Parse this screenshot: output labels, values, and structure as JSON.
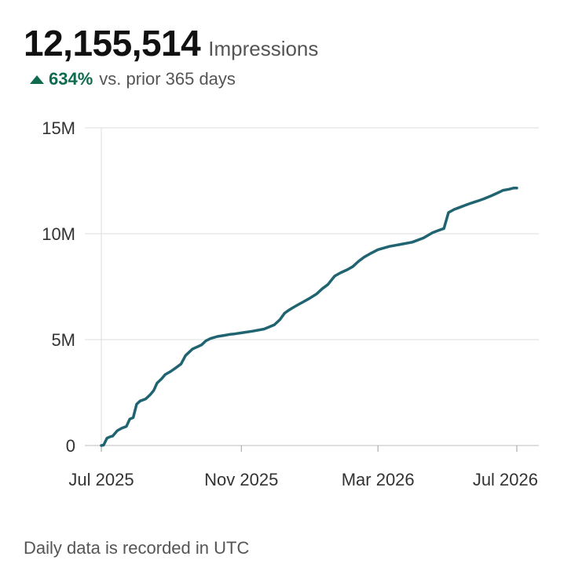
{
  "header": {
    "value": "12,155,514",
    "metric": "Impressions",
    "change_pct": "634%",
    "change_text": "vs. prior 365 days",
    "change_icon": "triangle-up-icon",
    "positive_color": "#0e6b4f"
  },
  "footnote": "Daily data is recorded in UTC",
  "chart_data": {
    "type": "line",
    "title": "",
    "xlabel": "",
    "ylabel": "",
    "line_color": "#1f6470",
    "grid": true,
    "ylim": [
      0,
      15000000
    ],
    "yticks": [
      0,
      5000000,
      10000000,
      15000000
    ],
    "ytick_labels": [
      "0",
      "5M",
      "10M",
      "15M"
    ],
    "xlim": [
      "2025-07-01",
      "2026-07-01"
    ],
    "xticks": [
      "2025-07-01",
      "2025-11-01",
      "2026-03-01",
      "2026-07-01"
    ],
    "xtick_labels": [
      "Jul 2025",
      "Nov 2025",
      "Mar 2026",
      "Jul 2026"
    ],
    "series": [
      {
        "x": [
          "2025-07-01",
          "2025-07-03",
          "2025-07-06",
          "2025-07-09",
          "2025-07-11",
          "2025-07-15",
          "2025-07-19",
          "2025-07-23",
          "2025-07-26",
          "2025-07-29",
          "2025-08-01",
          "2025-08-04",
          "2025-08-09",
          "2025-08-13",
          "2025-08-16",
          "2025-08-19",
          "2025-08-23",
          "2025-08-26",
          "2025-08-31",
          "2025-09-04",
          "2025-09-09",
          "2025-09-13",
          "2025-09-16",
          "2025-09-19",
          "2025-09-23",
          "2025-09-27",
          "2025-10-01",
          "2025-10-05",
          "2025-10-11",
          "2025-10-17",
          "2025-10-22",
          "2025-10-26",
          "2025-11-01",
          "2025-11-11",
          "2025-11-21",
          "2025-11-30",
          "2025-12-05",
          "2025-12-09",
          "2025-12-13",
          "2025-12-16",
          "2025-12-21",
          "2025-12-26",
          "2025-12-31",
          "2026-01-06",
          "2026-01-11",
          "2026-01-16",
          "2026-01-22",
          "2026-01-27",
          "2026-02-02",
          "2026-02-07",
          "2026-02-12",
          "2026-02-17",
          "2026-02-22",
          "2026-03-01",
          "2026-03-11",
          "2026-03-21",
          "2026-03-31",
          "2026-04-10",
          "2026-04-18",
          "2026-04-23",
          "2026-04-28",
          "2026-05-02",
          "2026-05-07",
          "2026-05-12",
          "2026-05-17",
          "2026-05-22",
          "2026-05-28",
          "2026-06-02",
          "2026-06-09",
          "2026-06-15",
          "2026-06-19",
          "2026-06-24",
          "2026-06-28",
          "2026-07-01"
        ],
        "y": [
          0,
          20000,
          350000,
          420000,
          450000,
          700000,
          820000,
          900000,
          1250000,
          1320000,
          1950000,
          2100000,
          2200000,
          2400000,
          2600000,
          2950000,
          3150000,
          3350000,
          3500000,
          3650000,
          3850000,
          4250000,
          4400000,
          4550000,
          4650000,
          4750000,
          4950000,
          5050000,
          5150000,
          5200000,
          5250000,
          5270000,
          5320000,
          5400000,
          5500000,
          5700000,
          5950000,
          6250000,
          6400000,
          6500000,
          6650000,
          6800000,
          6950000,
          7150000,
          7400000,
          7600000,
          8000000,
          8150000,
          8300000,
          8450000,
          8700000,
          8900000,
          9050000,
          9250000,
          9400000,
          9500000,
          9600000,
          9800000,
          10050000,
          10150000,
          10250000,
          11000000,
          11150000,
          11250000,
          11350000,
          11450000,
          11550000,
          11650000,
          11800000,
          11950000,
          12050000,
          12100000,
          12155514,
          12155514
        ]
      }
    ]
  }
}
